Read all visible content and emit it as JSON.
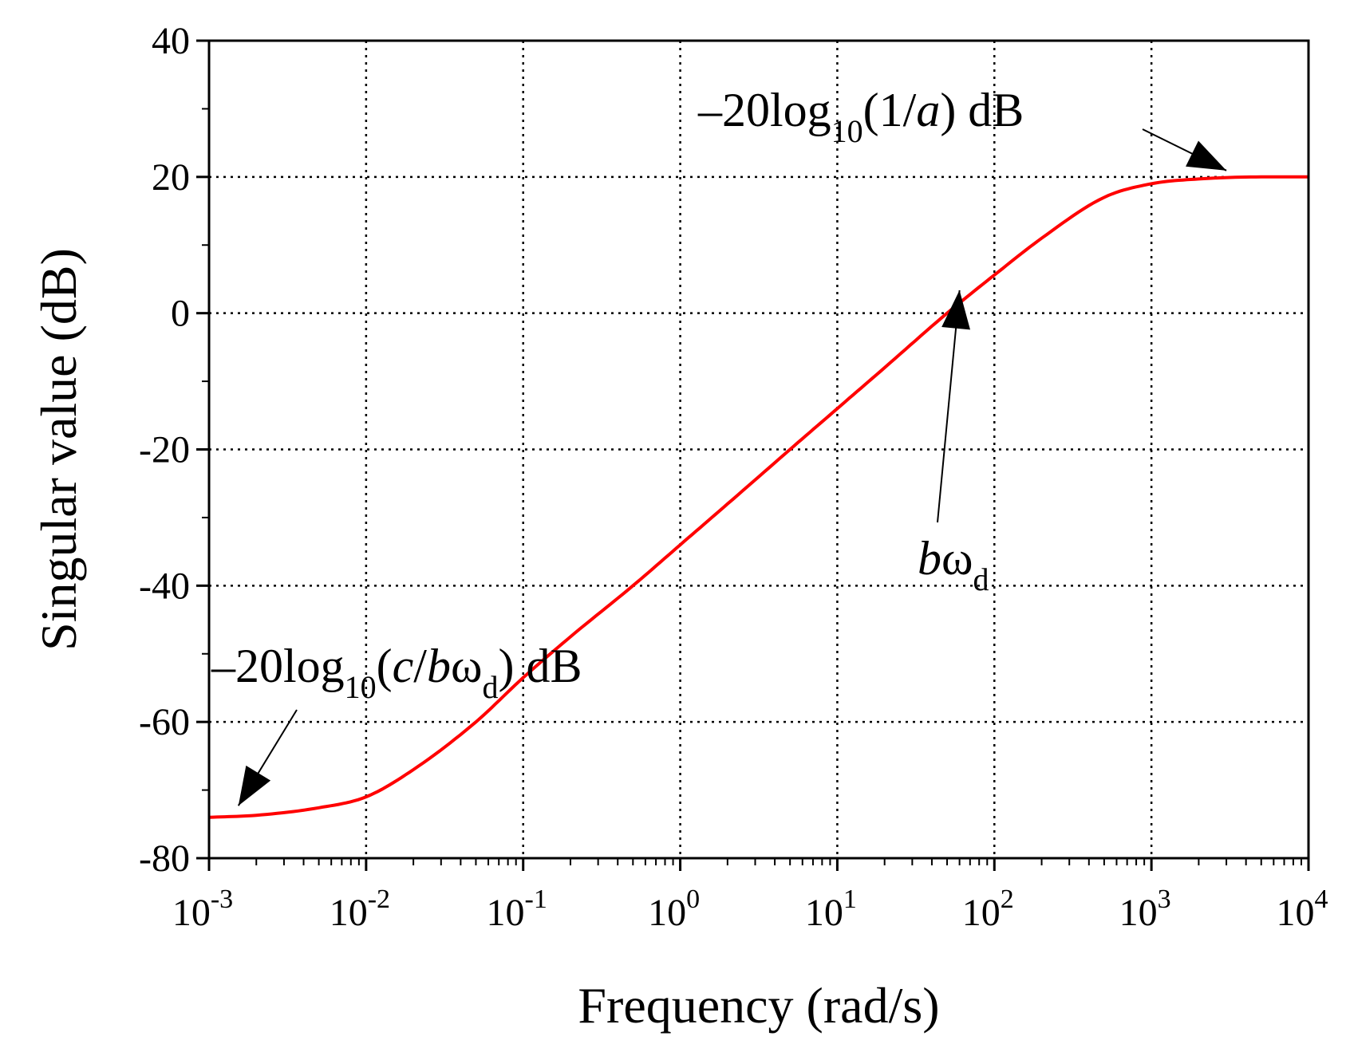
{
  "chart_data": {
    "type": "line",
    "title": "",
    "xlabel": "Frequency (rad/s)",
    "ylabel": "Singular value (dB)",
    "x_scale": "log",
    "xlim": [
      0.001,
      10000
    ],
    "ylim": [
      -80,
      40
    ],
    "grid": true,
    "x_ticks": [
      {
        "value": 0.001,
        "base": "10",
        "exp": "-3"
      },
      {
        "value": 0.01,
        "base": "10",
        "exp": "-2"
      },
      {
        "value": 0.1,
        "base": "10",
        "exp": "-1"
      },
      {
        "value": 1,
        "base": "10",
        "exp": "0"
      },
      {
        "value": 10,
        "base": "10",
        "exp": "1"
      },
      {
        "value": 100,
        "base": "10",
        "exp": "2"
      },
      {
        "value": 1000,
        "base": "10",
        "exp": "3"
      },
      {
        "value": 10000,
        "base": "10",
        "exp": "4"
      }
    ],
    "y_ticks": [
      {
        "value": 40,
        "label": "40"
      },
      {
        "value": 20,
        "label": "20"
      },
      {
        "value": 0,
        "label": "0"
      },
      {
        "value": -20,
        "label": "-20"
      },
      {
        "value": -40,
        "label": "-40"
      },
      {
        "value": -60,
        "label": "-60"
      },
      {
        "value": -80,
        "label": "-80"
      }
    ],
    "series": [
      {
        "name": "singular value",
        "color": "#ff0000",
        "x": [
          0.001,
          0.002,
          0.005,
          0.01,
          0.02,
          0.05,
          0.1,
          0.2,
          0.5,
          1,
          2,
          5,
          10,
          20,
          50,
          100,
          200,
          500,
          1000,
          2000,
          5000,
          10000
        ],
        "y": [
          -74.0,
          -73.7,
          -72.6,
          -71.0,
          -67.0,
          -60.0,
          -53.5,
          -47.5,
          -40.0,
          -34.0,
          -28.0,
          -20.0,
          -14.0,
          -8.0,
          0.0,
          5.6,
          11.0,
          17.0,
          19.0,
          19.7,
          20.0,
          20.0
        ]
      }
    ],
    "annotations": [
      {
        "id": "high",
        "parts": [
          "–20log",
          "10",
          "(1/",
          "a",
          ") dB"
        ],
        "points_to": {
          "x": 3000,
          "y": 20
        }
      },
      {
        "id": "mid",
        "parts": [
          "b",
          "ω",
          "d"
        ],
        "points_to": {
          "x": 60,
          "y": -6
        }
      },
      {
        "id": "low",
        "parts": [
          "–20log",
          "10",
          "(",
          "c",
          "/",
          "b",
          "ω",
          "d",
          ") dB"
        ],
        "points_to": {
          "x": 0.0014,
          "y": -73.7
        }
      }
    ]
  }
}
